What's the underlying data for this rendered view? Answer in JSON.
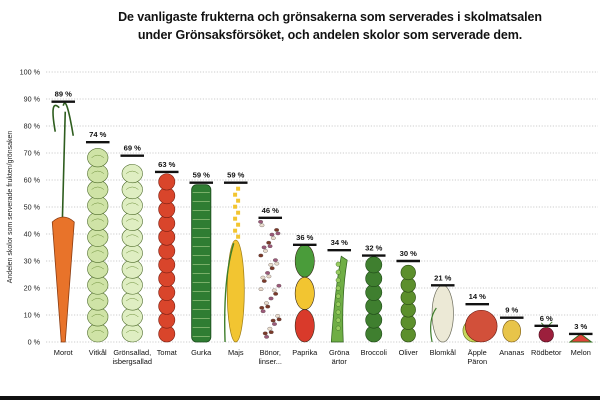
{
  "title_line1": "De vanligaste frukterna och grönsakerna som serverades i skolmatsalen",
  "title_line2": "under Grönsaksförsöket, och andelen skolor som serverade dem.",
  "chart_data": {
    "type": "bar",
    "title": "De vanligaste frukterna och grönsakerna som serverades i skolmatsalen under Grönsaksförsöket, och andelen skolor som serverade dem.",
    "ylabel": "Andelen skolor som serverade frukten/grönsaken",
    "xlabel": "",
    "ylim": [
      0,
      100
    ],
    "y_ticks": [
      0,
      10,
      20,
      30,
      40,
      50,
      60,
      70,
      80,
      90,
      100
    ],
    "y_tick_suffix": " %",
    "value_suffix": " %",
    "grid": true,
    "categories": [
      [
        "Morot"
      ],
      [
        "Vitkål"
      ],
      [
        "Grönsallad,",
        "isbergsallad"
      ],
      [
        "Tomat"
      ],
      [
        "Gurka"
      ],
      [
        "Majs"
      ],
      [
        "Bönor,",
        "linser..."
      ],
      [
        "Paprika"
      ],
      [
        "Gröna",
        "ärtor"
      ],
      [
        "Broccoli"
      ],
      [
        "Oliver"
      ],
      [
        "Blomkål"
      ],
      [
        "Äpple",
        "Päron"
      ],
      [
        "Ananas"
      ],
      [
        "Rödbetor"
      ],
      [
        "Melon"
      ]
    ],
    "values": [
      89,
      74,
      69,
      63,
      59,
      59,
      46,
      36,
      34,
      32,
      30,
      21,
      14,
      9,
      6,
      3
    ],
    "colors": {
      "marker": "#111111",
      "carrot": "#e8732a",
      "leafy": "#cfe3a6",
      "tomato": "#d9452b",
      "cucumber": "#2f7d32",
      "corn": "#f2c531",
      "beans": "#9b5a7a",
      "pepper_red": "#d93a2b",
      "pepper_green": "#4a9c3a",
      "peas": "#6fae45",
      "broccoli": "#3f7f2f",
      "olive": "#5c8f2c",
      "cauliflower": "#ece9d6",
      "apple": "#d2503a",
      "pineapple": "#e8c44a",
      "beet": "#9c1f3c",
      "melon": "#e0433a"
    }
  }
}
